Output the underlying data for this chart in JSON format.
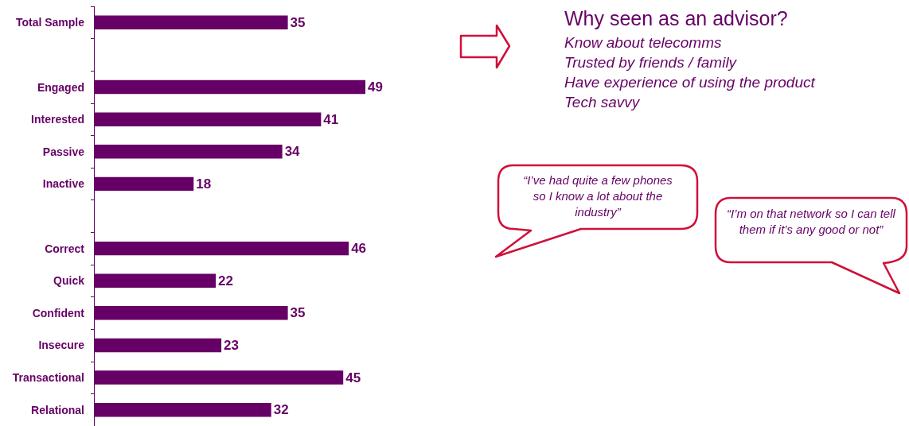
{
  "chart_data": {
    "type": "bar",
    "orientation": "horizontal",
    "color": "#660066",
    "data_labels": true,
    "tick_labels": "y",
    "categories": [
      "Total Sample",
      null,
      "Engaged",
      "Interested",
      "Passive",
      "Inactive",
      null,
      "Correct",
      "Quick",
      "Confident",
      "Insecure",
      "Transactional",
      "Relational"
    ],
    "values": [
      35,
      null,
      49,
      41,
      34,
      18,
      null,
      46,
      22,
      35,
      23,
      45,
      32
    ],
    "annotations": [
      "Why seen as an advisor?",
      "Know about telecomms",
      "Trusted by friends / family",
      "Have experience of using the product",
      "Tech savvy",
      "“I’ve had quite a few phones so I know a lot about the industry”",
      "“I’m on that network so I can tell them if it’s any good or not”"
    ]
  }
}
